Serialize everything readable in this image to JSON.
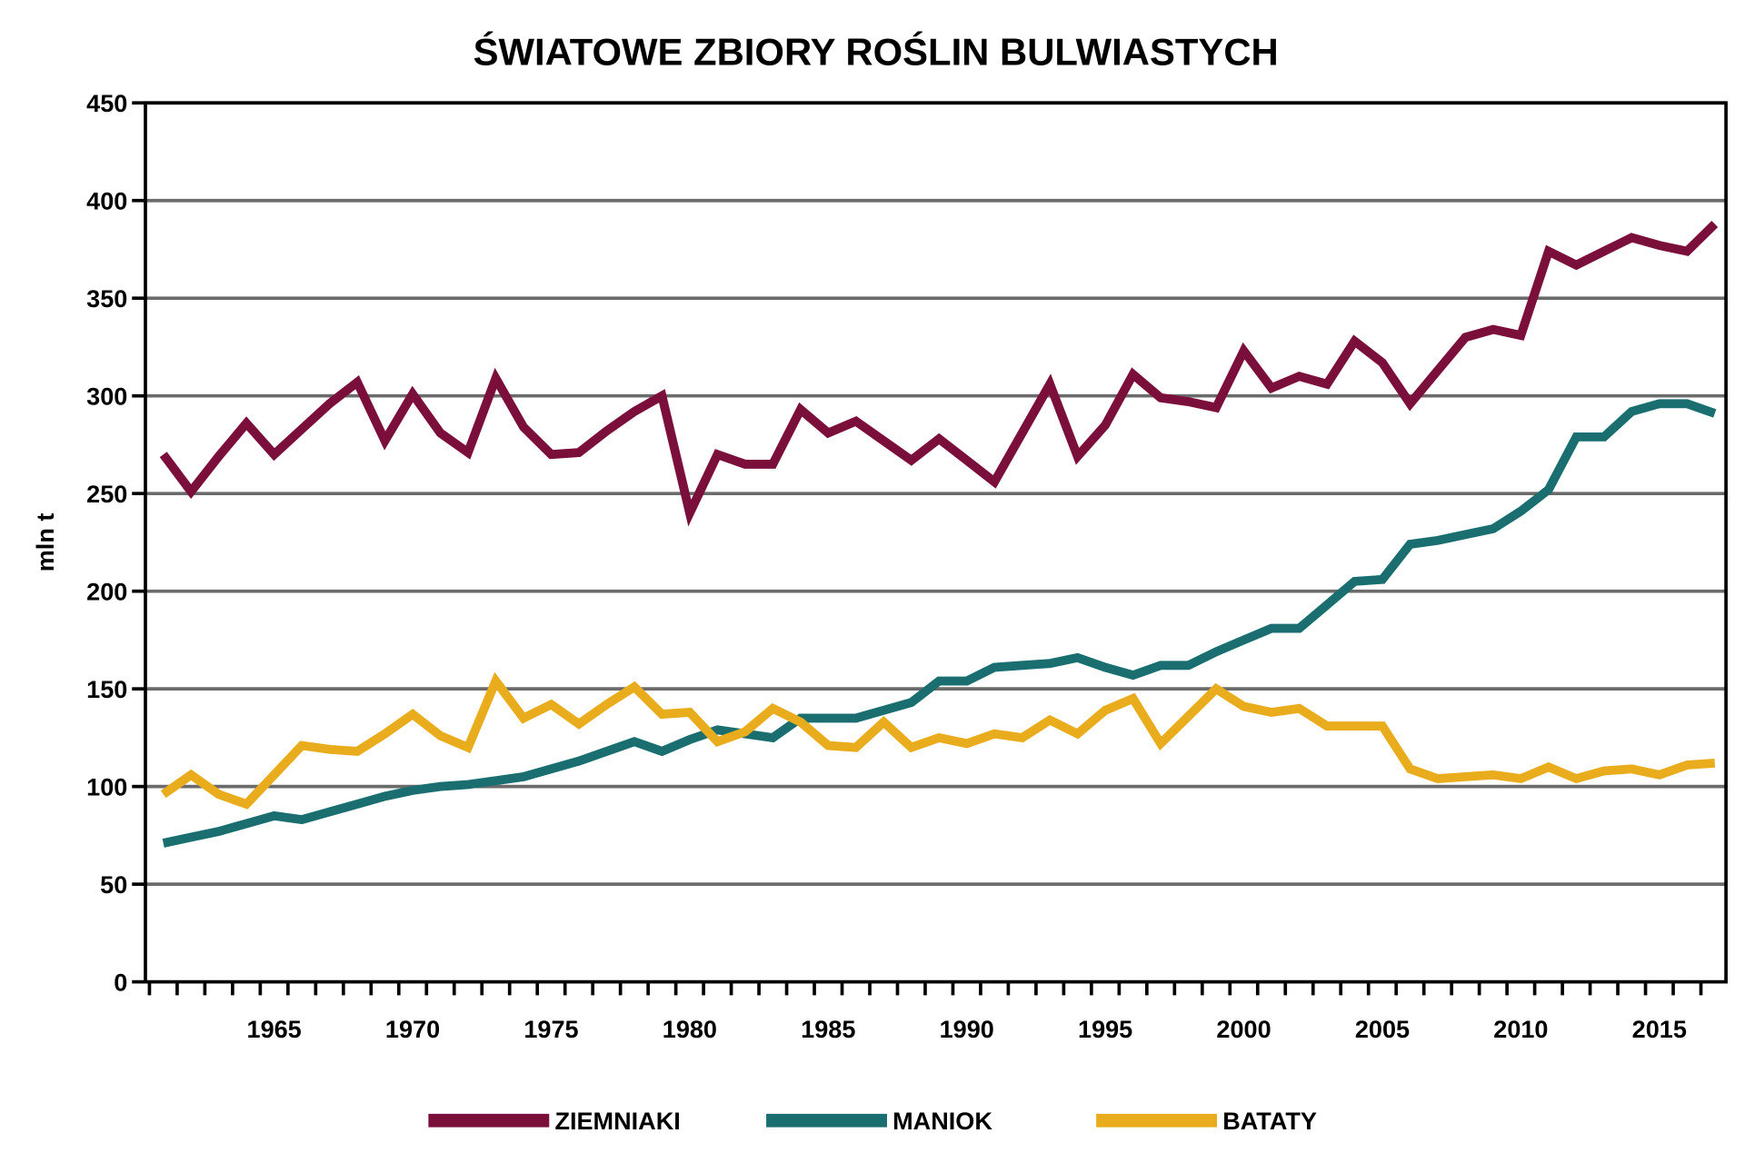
{
  "chart_data": {
    "type": "line",
    "title": "ŚWIATOWE ZBIORY ROŚLIN BULWIASTYCH",
    "xlabel": "",
    "ylabel": "mln t",
    "xlim": [
      1961,
      2017
    ],
    "ylim": [
      0,
      450
    ],
    "yticks": [
      0,
      50,
      100,
      150,
      200,
      250,
      300,
      350,
      400,
      450
    ],
    "xtick_labels": [
      "1965",
      "1970",
      "1975",
      "1980",
      "1985",
      "1990",
      "1995",
      "2000",
      "2005",
      "2010",
      "2015"
    ],
    "grid": true,
    "legend_position": "bottom",
    "x": [
      1961,
      1962,
      1963,
      1964,
      1965,
      1966,
      1967,
      1968,
      1969,
      1970,
      1971,
      1972,
      1973,
      1974,
      1975,
      1976,
      1977,
      1978,
      1979,
      1980,
      1981,
      1982,
      1983,
      1984,
      1985,
      1986,
      1987,
      1988,
      1989,
      1990,
      1991,
      1992,
      1993,
      1994,
      1995,
      1996,
      1997,
      1998,
      1999,
      2000,
      2001,
      2002,
      2003,
      2004,
      2005,
      2006,
      2007,
      2008,
      2009,
      2010,
      2011,
      2012,
      2013,
      2014,
      2015,
      2016,
      2017
    ],
    "series": [
      {
        "name": "ZIEMNIAKI",
        "color": "#7a0f3c",
        "values": [
          270,
          251,
          269,
          286,
          270,
          283,
          296,
          307,
          277,
          301,
          281,
          271,
          309,
          284,
          270,
          271,
          282,
          292,
          300,
          240,
          270,
          265,
          265,
          293,
          281,
          287,
          277,
          267,
          278,
          267,
          256,
          281,
          306,
          269,
          285,
          311,
          299,
          297,
          294,
          323,
          304,
          310,
          306,
          328,
          317,
          296,
          313,
          330,
          334,
          331,
          374,
          367,
          374,
          381,
          377,
          374,
          388
        ]
      },
      {
        "name": "MANIOK",
        "color": "#1a6e70",
        "values": [
          71,
          74,
          77,
          81,
          85,
          83,
          87,
          91,
          95,
          98,
          100,
          101,
          103,
          105,
          109,
          113,
          118,
          123,
          118,
          124,
          129,
          127,
          125,
          135,
          135,
          135,
          139,
          143,
          154,
          154,
          161,
          162,
          163,
          166,
          161,
          157,
          162,
          162,
          169,
          175,
          181,
          181,
          193,
          205,
          206,
          224,
          226,
          229,
          232,
          241,
          252,
          279,
          279,
          292,
          296,
          296,
          291
        ]
      },
      {
        "name": "BATATY",
        "color": "#e8ac1c",
        "values": [
          96,
          106,
          96,
          91,
          106,
          121,
          119,
          118,
          127,
          137,
          126,
          120,
          154,
          135,
          142,
          132,
          142,
          151,
          137,
          138,
          123,
          128,
          140,
          133,
          121,
          120,
          133,
          120,
          125,
          122,
          127,
          125,
          134,
          127,
          139,
          145,
          122,
          136,
          150,
          141,
          138,
          140,
          131,
          131,
          131,
          109,
          104,
          105,
          106,
          104,
          110,
          104,
          108,
          109,
          106,
          111,
          112
        ]
      }
    ]
  }
}
